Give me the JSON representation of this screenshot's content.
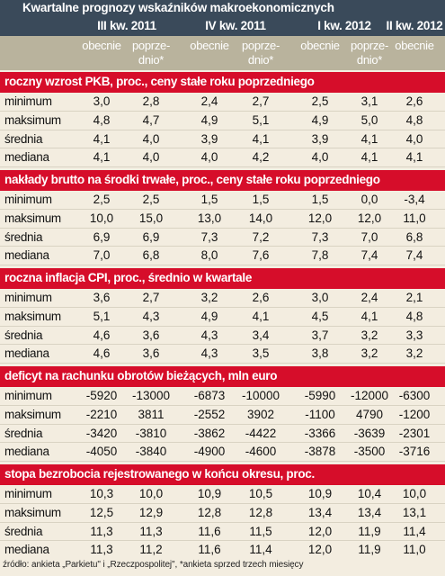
{
  "title": "Kwartalne prognozy wskaźników makroekonomicznych",
  "quarters": [
    "III kw. 2011",
    "IV kw. 2011",
    "I kw. 2012",
    "II kw. 2012"
  ],
  "subheaders": [
    "obecnie",
    "poprze-\ndnio*",
    "obecnie",
    "poprze-\ndnio*",
    "obecnie",
    "poprze-\ndnio*",
    "obecnie"
  ],
  "sections": [
    {
      "title": "roczny wzrost PKB, proc., ceny stałe roku poprzedniego",
      "rows": [
        {
          "label": "minimum",
          "values": [
            "3,0",
            "2,8",
            "2,4",
            "2,7",
            "2,5",
            "3,1",
            "2,6"
          ]
        },
        {
          "label": "maksimum",
          "values": [
            "4,8",
            "4,7",
            "4,9",
            "5,1",
            "4,9",
            "5,0",
            "4,8"
          ]
        },
        {
          "label": "średnia",
          "values": [
            "4,1",
            "4,0",
            "3,9",
            "4,1",
            "3,9",
            "4,1",
            "4,0"
          ]
        },
        {
          "label": "mediana",
          "values": [
            "4,1",
            "4,0",
            "4,0",
            "4,2",
            "4,0",
            "4,1",
            "4,1"
          ]
        }
      ]
    },
    {
      "title": "nakłady brutto na środki trwałe, proc., ceny stałe roku poprzedniego",
      "rows": [
        {
          "label": "minimum",
          "values": [
            "2,5",
            "2,5",
            "1,5",
            "1,5",
            "1,5",
            "0,0",
            "-3,4"
          ]
        },
        {
          "label": "maksimum",
          "values": [
            "10,0",
            "15,0",
            "13,0",
            "14,0",
            "12,0",
            "12,0",
            "11,0"
          ]
        },
        {
          "label": "średnia",
          "values": [
            "6,9",
            "6,9",
            "7,3",
            "7,2",
            "7,3",
            "7,0",
            "6,8"
          ]
        },
        {
          "label": "mediana",
          "values": [
            "7,0",
            "6,8",
            "8,0",
            "7,6",
            "7,8",
            "7,4",
            "7,4"
          ]
        }
      ]
    },
    {
      "title": "roczna inflacja CPI, proc., średnio w kwartale",
      "rows": [
        {
          "label": "minimum",
          "values": [
            "3,6",
            "2,7",
            "3,2",
            "2,6",
            "3,0",
            "2,4",
            "2,1"
          ]
        },
        {
          "label": "maksimum",
          "values": [
            "5,1",
            "4,3",
            "4,9",
            "4,1",
            "4,5",
            "4,1",
            "4,8"
          ]
        },
        {
          "label": "średnia",
          "values": [
            "4,6",
            "3,6",
            "4,3",
            "3,4",
            "3,7",
            "3,2",
            "3,3"
          ]
        },
        {
          "label": "mediana",
          "values": [
            "4,6",
            "3,6",
            "4,3",
            "3,5",
            "3,8",
            "3,2",
            "3,2"
          ]
        }
      ]
    },
    {
      "title": "deficyt na rachunku obrotów bieżących, mln euro",
      "rows": [
        {
          "label": "minimum",
          "values": [
            "-5920",
            "-13000",
            "-6873",
            "-10000",
            "-5990",
            "-12000",
            "-6300"
          ]
        },
        {
          "label": "maksimum",
          "values": [
            "-2210",
            "3811",
            "-2552",
            "3902",
            "-1100",
            "4790",
            "-1200"
          ]
        },
        {
          "label": "średnia",
          "values": [
            "-3420",
            "-3810",
            "-3862",
            "-4422",
            "-3366",
            "-3639",
            "-2301"
          ]
        },
        {
          "label": "mediana",
          "values": [
            "-4050",
            "-3840",
            "-4900",
            "-4600",
            "-3878",
            "-3500",
            "-3716"
          ]
        }
      ]
    },
    {
      "title": "stopa bezrobocia rejestrowanego w końcu okresu, proc.",
      "rows": [
        {
          "label": "minimum",
          "values": [
            "10,3",
            "10,0",
            "10,9",
            "10,5",
            "10,9",
            "10,4",
            "10,0"
          ]
        },
        {
          "label": "maksimum",
          "values": [
            "12,5",
            "12,9",
            "12,8",
            "12,8",
            "13,4",
            "13,4",
            "13,1"
          ]
        },
        {
          "label": "średnia",
          "values": [
            "11,3",
            "11,3",
            "11,6",
            "11,5",
            "12,0",
            "11,9",
            "11,4"
          ]
        },
        {
          "label": "mediana",
          "values": [
            "11,3",
            "11,2",
            "11,6",
            "11,4",
            "12,0",
            "11,9",
            "11,0"
          ]
        }
      ]
    }
  ],
  "footer": "źródło: ankieta „Parkietu\" i „Rzeczpospolitej\", *ankieta sprzed trzech miesięcy",
  "colors": {
    "header_bg": "#3a4a5a",
    "subheader_bg": "#b9b39d",
    "section_bg": "#d60d2a",
    "body_bg": "#f3ede0"
  }
}
